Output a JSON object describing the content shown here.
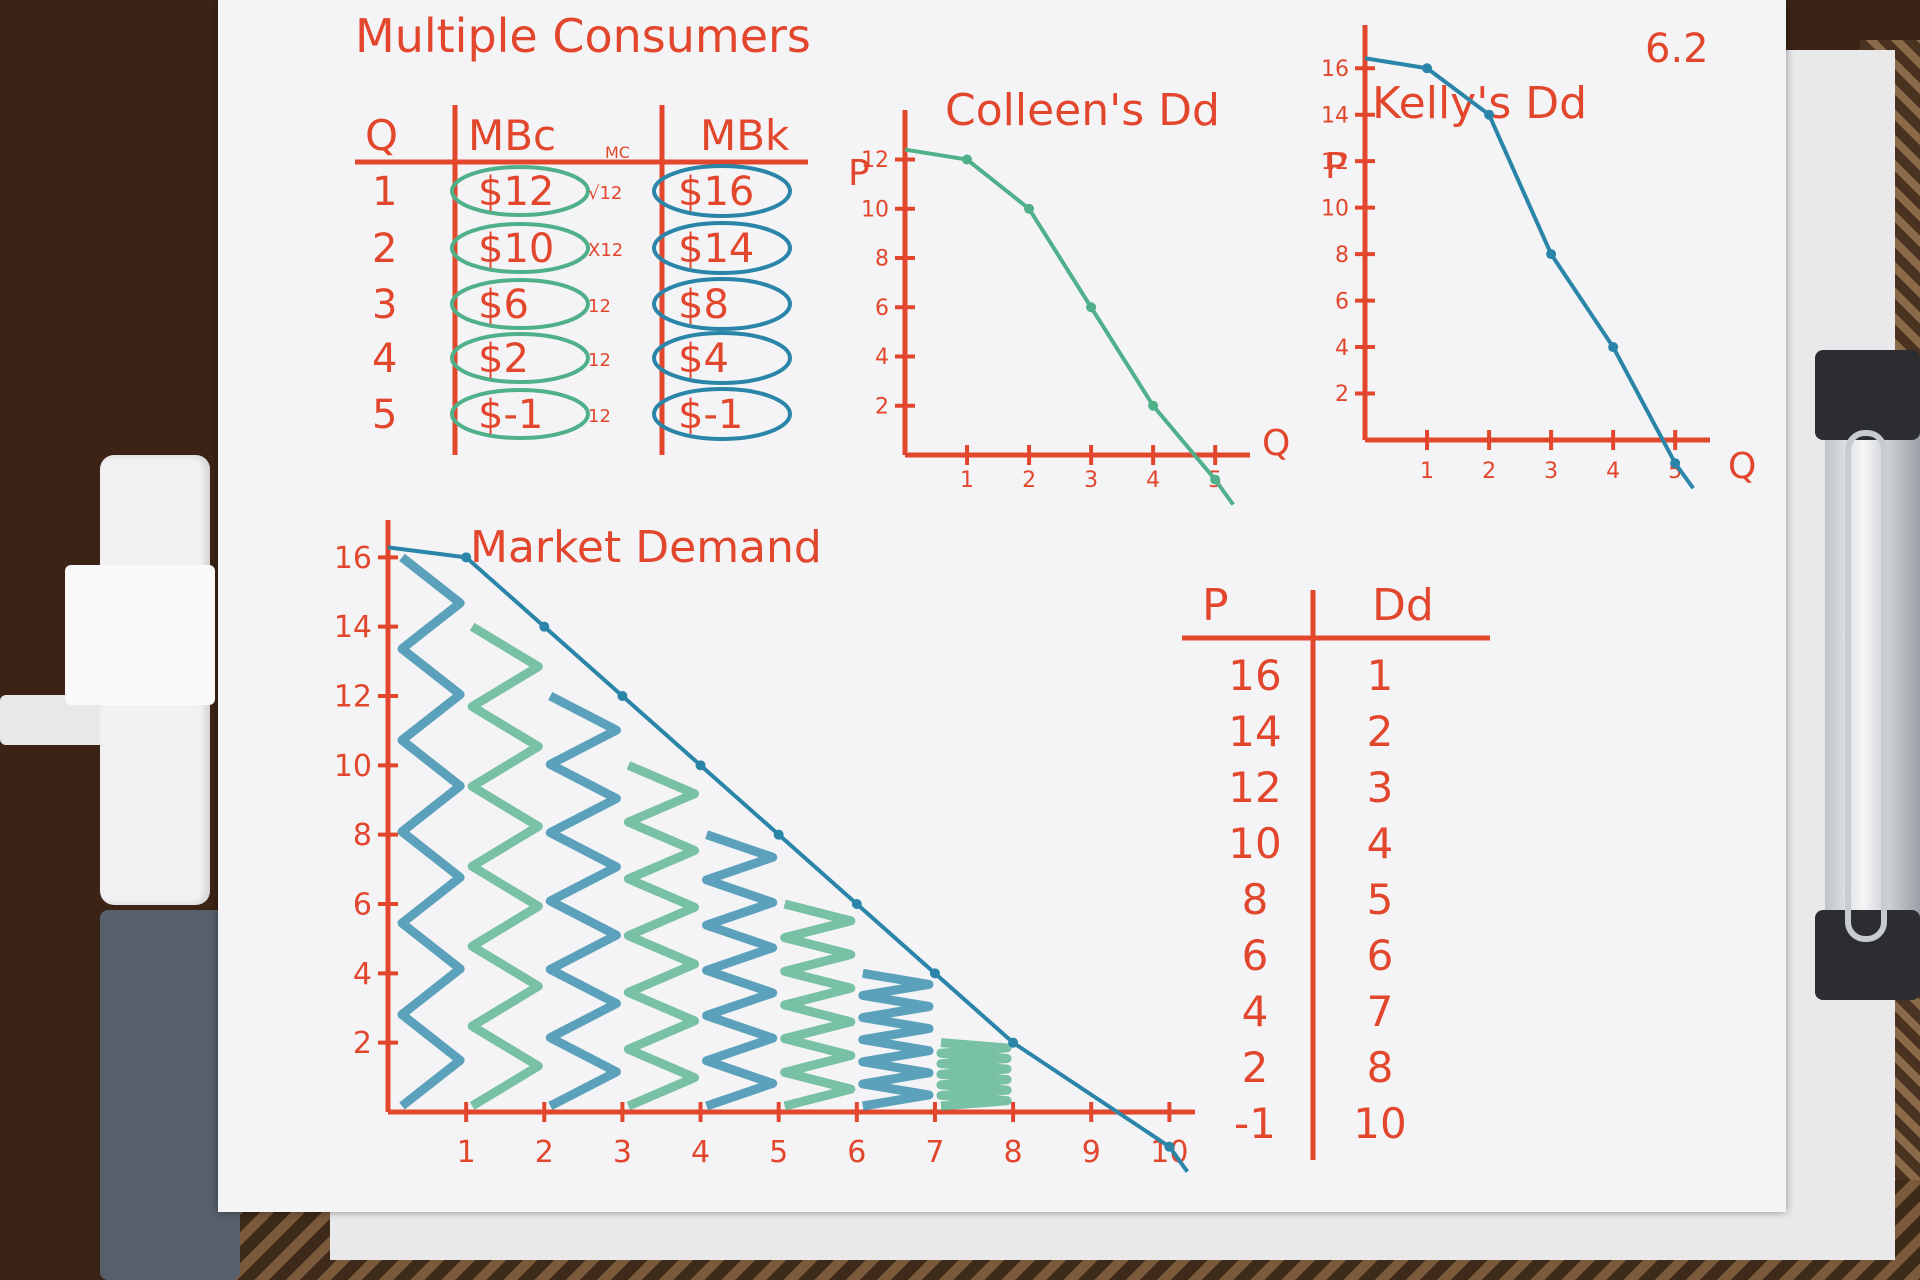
{
  "page_number": "6.2",
  "title": "Multiple Consumers",
  "table": {
    "headers": [
      "Q",
      "MBc",
      "MC",
      "MBk"
    ],
    "rows": [
      {
        "q": "1",
        "mbc": "$12",
        "mc": "√12",
        "mbk": "$16"
      },
      {
        "q": "2",
        "mbc": "$10",
        "mc": "X12",
        "mbk": "$14"
      },
      {
        "q": "3",
        "mbc": "$6",
        "mc": "12",
        "mbk": "$8"
      },
      {
        "q": "4",
        "mbc": "$2",
        "mc": "12",
        "mbk": "$4"
      },
      {
        "q": "5",
        "mbc": "$-1",
        "mc": "12",
        "mbk": "$-1"
      }
    ]
  },
  "market_table": {
    "headers": [
      "P",
      "Dd"
    ],
    "rows": [
      [
        "16",
        "1"
      ],
      [
        "14",
        "2"
      ],
      [
        "12",
        "3"
      ],
      [
        "10",
        "4"
      ],
      [
        "8",
        "5"
      ],
      [
        "6",
        "6"
      ],
      [
        "4",
        "7"
      ],
      [
        "2",
        "8"
      ],
      [
        "-1",
        "10"
      ]
    ]
  },
  "colors": {
    "ink_orange": "#e2472d",
    "ink_green": "#4fb08a",
    "ink_blue": "#2a85a8",
    "paper": "#f4f4f6"
  },
  "chart_data": [
    {
      "type": "line",
      "title": "Colleen's Dd",
      "xlabel": "Q",
      "ylabel": "P",
      "x_ticks": [
        "1",
        "2",
        "3",
        "4",
        "5"
      ],
      "y_ticks": [
        "2",
        "4",
        "6",
        "8",
        "10",
        "12"
      ],
      "xlim": [
        0,
        5.4
      ],
      "ylim": [
        0,
        13.2
      ],
      "series": [
        {
          "color": "#4fb08a",
          "x": [
            1,
            2,
            3,
            4,
            5
          ],
          "y": [
            12,
            10,
            6,
            2,
            -1
          ]
        }
      ]
    },
    {
      "type": "line",
      "title": "Kelly's Dd",
      "xlabel": "Q",
      "ylabel": "P",
      "x_ticks": [
        "1",
        "2",
        "3",
        "4",
        "5"
      ],
      "y_ticks": [
        "2",
        "4",
        "6",
        "8",
        "10",
        "12",
        "14",
        "16"
      ],
      "xlim": [
        0,
        5.4
      ],
      "ylim": [
        0,
        17
      ],
      "series": [
        {
          "color": "#2a85a8",
          "x": [
            1,
            2,
            3,
            4,
            5
          ],
          "y": [
            16,
            14,
            8,
            4,
            -1
          ]
        }
      ]
    },
    {
      "type": "area",
      "title": "Market Demand",
      "x_ticks": [
        "1",
        "2",
        "3",
        "4",
        "5",
        "6",
        "7",
        "8",
        "9",
        "10"
      ],
      "y_ticks": [
        "2",
        "4",
        "6",
        "8",
        "10",
        "12",
        "14",
        "16"
      ],
      "xlim": [
        0,
        10.2
      ],
      "ylim": [
        0,
        16.5
      ],
      "series": [
        {
          "color": "#2a85a8",
          "x": [
            1,
            2,
            3,
            4,
            5,
            6,
            7,
            8,
            10
          ],
          "y": [
            16,
            14,
            12,
            10,
            8,
            6,
            4,
            2,
            -1
          ]
        }
      ]
    }
  ]
}
